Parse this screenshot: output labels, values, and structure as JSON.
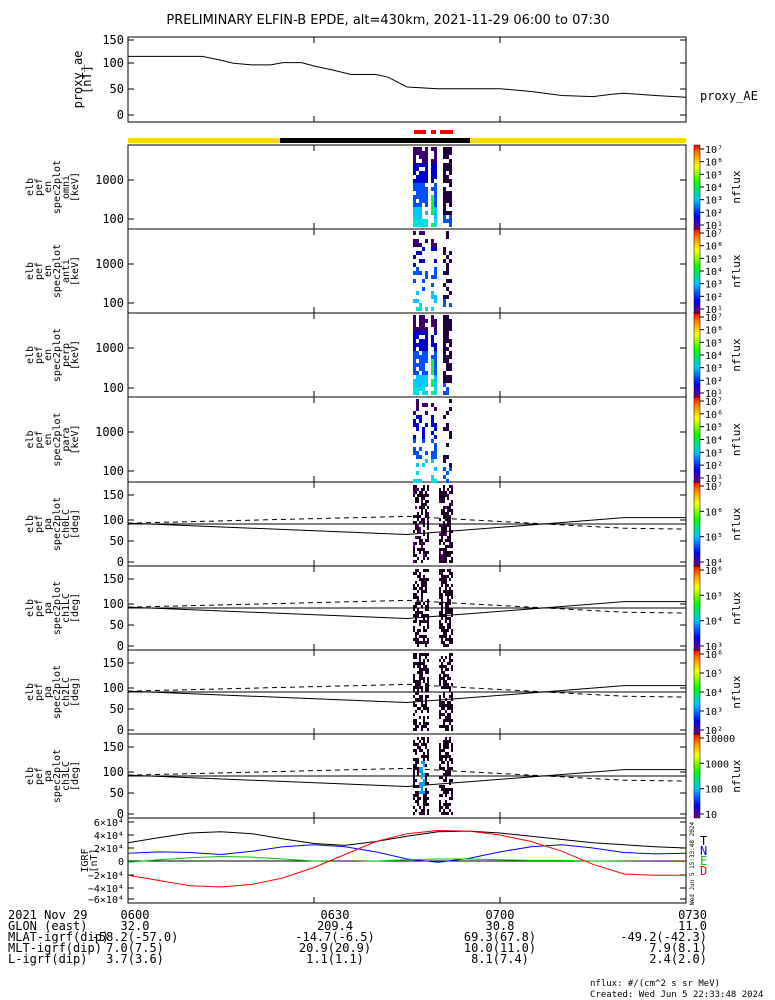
{
  "title": "PRELIMINARY ELFIN-B EPDE, alt=430km, 2021-11-29 06:00 to 07:30",
  "colors": {
    "bar_yellow": "#ffd700",
    "bar_black": "#000000",
    "bar_red": "#ff0000",
    "t_line": "#000000",
    "n_line": "#0000ff",
    "e_line": "#00cc00",
    "d_line": "#ff0000"
  },
  "panels": [
    {
      "id": "ae",
      "ylabel": [
        "proxy_ae",
        "[nT]"
      ],
      "ticks": [
        "150",
        "100",
        "50",
        "0"
      ],
      "right_label": "proxy_AE"
    },
    {
      "id": "omni",
      "ylabel": [
        "elb",
        "pef",
        "en",
        "spec2plot",
        "omni",
        "[keV]"
      ],
      "ticks": [
        "1000",
        "100"
      ],
      "cb_ticks": [
        "10⁷",
        "10⁶",
        "10⁵",
        "10⁴",
        "10³",
        "10²",
        "10¹"
      ],
      "cb_label": "nflux"
    },
    {
      "id": "anti",
      "ylabel": [
        "elb",
        "pef",
        "en",
        "spec2plot",
        "anti",
        "[keV]"
      ],
      "ticks": [
        "1000",
        "100"
      ],
      "cb_ticks": [
        "10⁷",
        "10⁶",
        "10⁵",
        "10⁴",
        "10³",
        "10²",
        "10¹"
      ],
      "cb_label": "nflux"
    },
    {
      "id": "perp",
      "ylabel": [
        "elb",
        "pef",
        "en",
        "spec2plot",
        "perp",
        "[keV]"
      ],
      "ticks": [
        "1000",
        "100"
      ],
      "cb_ticks": [
        "10⁷",
        "10⁶",
        "10⁵",
        "10⁴",
        "10³",
        "10²",
        "10¹"
      ],
      "cb_label": "nflux"
    },
    {
      "id": "para",
      "ylabel": [
        "elb",
        "pef",
        "en",
        "spec2plot",
        "para",
        "[keV]"
      ],
      "ticks": [
        "1000",
        "100"
      ],
      "cb_ticks": [
        "10⁷",
        "10⁶",
        "10⁵",
        "10⁴",
        "10³",
        "10²",
        "10¹"
      ],
      "cb_label": "nflux"
    },
    {
      "id": "ch0",
      "ylabel": [
        "elb",
        "pef",
        "pa",
        "spec2plot",
        "ch0LC",
        "[deg]"
      ],
      "ticks": [
        "150",
        "100",
        "50",
        "0"
      ],
      "cb_ticks": [
        "10⁷",
        "10⁶",
        "10⁵",
        "10⁴"
      ],
      "cb_label": "nflux"
    },
    {
      "id": "ch1",
      "ylabel": [
        "elb",
        "pef",
        "pa",
        "spec2plot",
        "ch1LC",
        "[deg]"
      ],
      "ticks": [
        "150",
        "100",
        "50",
        "0"
      ],
      "cb_ticks": [
        "10⁶",
        "10⁵",
        "10⁴",
        "10³"
      ],
      "cb_label": "nflux"
    },
    {
      "id": "ch2",
      "ylabel": [
        "elb",
        "pef",
        "pa",
        "spec2plot",
        "ch2LC",
        "[deg]"
      ],
      "ticks": [
        "150",
        "100",
        "50",
        "0"
      ],
      "cb_ticks": [
        "10⁶",
        "10⁵",
        "10⁴",
        "10³",
        "10²"
      ],
      "cb_label": "nflux"
    },
    {
      "id": "ch3",
      "ylabel": [
        "elb",
        "pef",
        "pa",
        "spec2plot",
        "ch3LC",
        "[deg]"
      ],
      "ticks": [
        "150",
        "100",
        "50",
        "0"
      ],
      "cb_ticks": [
        "10000",
        "1000",
        "100",
        "10"
      ],
      "cb_label": "nflux"
    },
    {
      "id": "igrf",
      "ylabel": [
        "IGRF",
        "[nT]"
      ],
      "ticks": [
        "6×10⁴",
        "4×10⁴",
        "2×10⁴",
        "0",
        "−2×10⁴",
        "−4×10⁴",
        "−6×10⁴"
      ],
      "legend": [
        "T",
        "N",
        "E",
        "D"
      ]
    }
  ],
  "footer_rows": [
    {
      "label": "2021 Nov 29",
      "values": [
        "0600",
        "0630",
        "0700",
        "0730"
      ]
    },
    {
      "label": "GLON (east)",
      "values": [
        "32.0",
        "209.4",
        "30.8",
        "11.0"
      ]
    },
    {
      "label": "MLAT-igrf(dip)",
      "values": [
        "-58.2(-57.0)",
        "-14.7(-6.5)",
        "69.3(67.8)",
        "-49.2(-42.3)"
      ]
    },
    {
      "label": "MLT-igrf(dip)",
      "values": [
        "7.0(7.5)",
        "20.9(20.9)",
        "10.0(11.0)",
        "7.9(8.1)"
      ]
    },
    {
      "label": "L-igrf(dip)",
      "values": [
        "3.7(3.6)",
        "1.1(1.1)",
        "8.1(7.4)",
        "2.4(2.0)"
      ]
    }
  ],
  "units_note": "nflux: #/(cm^2 s sr MeV)",
  "created_note": "Created: Wed Jun  5 22:33:48 2024",
  "side_stamp": "Wed Jun  5 15:33:48 2024",
  "chart_data": [
    {
      "type": "line",
      "title": "proxy_ae",
      "series": [
        {
          "name": "proxy_AE",
          "x_minutes": [
            0,
            5,
            10,
            12,
            15,
            17,
            20,
            23,
            25,
            28,
            30,
            33,
            36,
            40,
            42,
            45,
            50,
            55,
            60,
            65,
            70,
            75,
            78,
            80,
            85,
            90
          ],
          "values": [
            107,
            107,
            107,
            107,
            100,
            95,
            92,
            92,
            96,
            96,
            90,
            83,
            75,
            75,
            70,
            53,
            50,
            50,
            50,
            45,
            38,
            36,
            40,
            42,
            38,
            35
          ]
        }
      ],
      "ylim": [
        0,
        150
      ]
    },
    {
      "type": "heatmap",
      "title": "energy spectrograms (omni, anti, perp, para)",
      "ylabel": "keV",
      "ylim": [
        63,
        7000
      ],
      "y_scale": "log",
      "zlim": [
        10,
        10000000
      ]
    },
    {
      "type": "line",
      "title": "IGRF",
      "series": [
        {
          "name": "T",
          "x_minutes": [
            0,
            5,
            10,
            15,
            20,
            25,
            30,
            35,
            40,
            45,
            50,
            55,
            60,
            65,
            70,
            75,
            80,
            85,
            90
          ],
          "values": [
            28000,
            36000,
            43000,
            45000,
            42000,
            34000,
            27000,
            24000,
            30000,
            38000,
            45000,
            46000,
            43000,
            38000,
            33000,
            28000,
            25000,
            22000,
            20000
          ]
        },
        {
          "name": "N",
          "x_minutes": [
            0,
            5,
            10,
            15,
            20,
            25,
            30,
            35,
            40,
            45,
            50,
            55,
            60,
            65,
            70,
            75,
            80,
            85,
            90
          ],
          "values": [
            12000,
            14000,
            13000,
            10000,
            15000,
            22000,
            25000,
            22000,
            14000,
            3000,
            -2000,
            4000,
            14000,
            22000,
            25000,
            20000,
            13000,
            11000,
            12000
          ]
        },
        {
          "name": "E",
          "x_minutes": [
            0,
            5,
            10,
            15,
            20,
            25,
            30,
            35,
            40,
            45,
            50,
            55,
            60,
            65,
            70,
            75,
            80,
            85,
            90
          ],
          "values": [
            -2000,
            2000,
            5000,
            7000,
            6000,
            3000,
            0,
            -1000,
            0,
            2000,
            3000,
            3000,
            2000,
            1000,
            1000,
            0,
            -500,
            -1000,
            -1000
          ]
        },
        {
          "name": "D",
          "x_minutes": [
            0,
            5,
            10,
            15,
            20,
            25,
            30,
            35,
            40,
            45,
            50,
            55,
            60,
            65,
            70,
            75,
            80,
            85,
            90
          ],
          "values": [
            -22000,
            -30000,
            -38000,
            -40000,
            -36000,
            -26000,
            -10000,
            10000,
            30000,
            42000,
            47000,
            46000,
            40000,
            30000,
            15000,
            -5000,
            -20000,
            -22000,
            -22000
          ]
        }
      ],
      "ylim": [
        -60000,
        60000
      ]
    }
  ]
}
